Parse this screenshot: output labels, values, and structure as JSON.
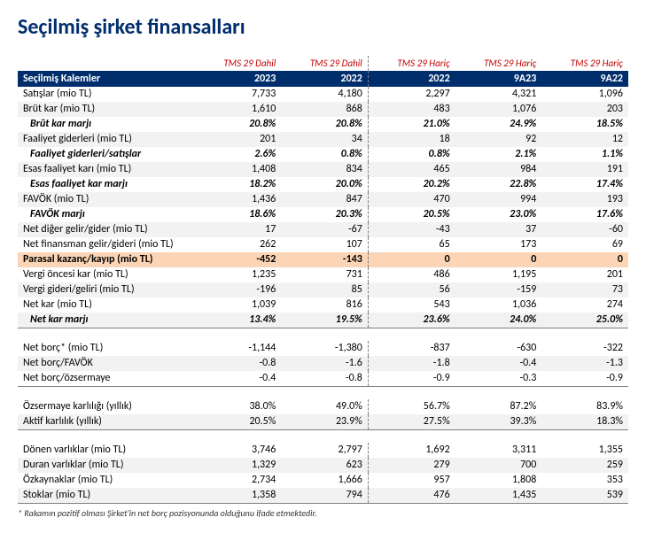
{
  "colors": {
    "title": "#002e6d",
    "super_header_text": "#c00000",
    "header_bg": "#002e6d",
    "header_text": "#ffffff",
    "highlight_bg": "#fbd5b5",
    "alt_row_bg": "#f2f2f2",
    "sep": "#7f7f7f"
  },
  "title": "Seçilmiş şirket finansalları",
  "footnote": "* Rakamın pozitif olması Şirket'in net borç pozisyonunda olduğunu ifade etmektedir.",
  "super_headers": [
    "TMS 29 Dahil",
    "TMS 29 Dahil",
    "TMS 29 Hariç",
    "TMS 29 Hariç",
    "TMS 29 Hariç"
  ],
  "headers": [
    "Seçilmiş Kalemler",
    "2023",
    "2022",
    "2022",
    "9A23",
    "9A22"
  ],
  "rows": [
    {
      "cells": [
        "Satışlar (mio TL)",
        "7,733",
        "4,180",
        "2,297",
        "4,321",
        "1,096"
      ]
    },
    {
      "cells": [
        "Brüt kar (mio TL)",
        "1,610",
        "868",
        "483",
        "1,076",
        "203"
      ],
      "alt": true
    },
    {
      "cells": [
        "Brüt kar marjı",
        "20.8%",
        "20.8%",
        "21.0%",
        "24.9%",
        "18.5%"
      ],
      "italic": true,
      "indent": true
    },
    {
      "cells": [
        "Faaliyet giderleri (mio TL)",
        "201",
        "34",
        "18",
        "92",
        "12"
      ],
      "alt": true
    },
    {
      "cells": [
        "Faaliyet giderleri/satışlar",
        "2.6%",
        "0.8%",
        "0.8%",
        "2.1%",
        "1.1%"
      ],
      "italic": true,
      "indent": true
    },
    {
      "cells": [
        "Esas faaliyet karı (mio TL)",
        "1,408",
        "834",
        "465",
        "984",
        "191"
      ],
      "alt": true
    },
    {
      "cells": [
        "Esas faaliyet kar marjı",
        "18.2%",
        "20.0%",
        "20.2%",
        "22.8%",
        "17.4%"
      ],
      "italic": true,
      "indent": true
    },
    {
      "cells": [
        "FAVÖK (mio TL)",
        "1,436",
        "847",
        "470",
        "994",
        "193"
      ],
      "alt": true
    },
    {
      "cells": [
        "FAVÖK marjı",
        "18.6%",
        "20.3%",
        "20.5%",
        "23.0%",
        "17.6%"
      ],
      "italic": true,
      "indent": true
    },
    {
      "cells": [
        "Net diğer gelir/gider (mio TL)",
        "17",
        "-67",
        "-43",
        "37",
        "-60"
      ],
      "alt": true
    },
    {
      "cells": [
        "Net finansman gelir/gideri (mio TL)",
        "262",
        "107",
        "65",
        "173",
        "69"
      ]
    },
    {
      "cells": [
        "Parasal kazanç/kayıp (mio TL)",
        "-452",
        "-143",
        "0",
        "0",
        "0"
      ],
      "highlight": true
    },
    {
      "cells": [
        "Vergi öncesi kar (mio TL)",
        "1,235",
        "731",
        "486",
        "1,195",
        "201"
      ]
    },
    {
      "cells": [
        "Vergi gideri/geliri (mio TL)",
        "-196",
        "85",
        "56",
        "-159",
        "73"
      ],
      "alt": true
    },
    {
      "cells": [
        "Net kar (mio TL)",
        "1,039",
        "816",
        "543",
        "1,036",
        "274"
      ]
    },
    {
      "cells": [
        "Net kar marjı",
        "13.4%",
        "19.5%",
        "23.6%",
        "24.0%",
        "25.0%"
      ],
      "italic": true,
      "indent": true,
      "alt": true,
      "sep": true
    },
    {
      "blank": true
    },
    {
      "cells": [
        "Net borç* (mio TL)",
        "-1,144",
        "-1,380",
        "-837",
        "-630",
        "-322"
      ]
    },
    {
      "cells": [
        "Net borç/FAVÖK",
        "-0.8",
        "-1.6",
        "-1.8",
        "-0.4",
        "-1.3"
      ],
      "alt": true
    },
    {
      "cells": [
        "Net borç/özsermaye",
        "-0.4",
        "-0.8",
        "-0.9",
        "-0.3",
        "-0.9"
      ],
      "sep": true
    },
    {
      "blank": true
    },
    {
      "cells": [
        "Özsermaye karlılığı (yıllık)",
        "38.0%",
        "49.0%",
        "56.7%",
        "87.2%",
        "83.9%"
      ]
    },
    {
      "cells": [
        "Aktif karlılık (yıllık)",
        "20.5%",
        "23.9%",
        "27.5%",
        "39.3%",
        "18.3%"
      ],
      "alt": true,
      "sep": true
    },
    {
      "blank": true
    },
    {
      "cells": [
        "Dönen varlıklar (mio TL)",
        "3,746",
        "2,797",
        "1,692",
        "3,311",
        "1,355"
      ]
    },
    {
      "cells": [
        "Duran varlıklar (mio TL)",
        "1,329",
        "623",
        "279",
        "700",
        "259"
      ],
      "alt": true
    },
    {
      "cells": [
        "Özkaynaklar (mio TL)",
        "2,734",
        "1,666",
        "957",
        "1,808",
        "353"
      ]
    },
    {
      "cells": [
        "Stoklar (mio TL)",
        "1,358",
        "794",
        "476",
        "1,435",
        "539"
      ],
      "alt": true,
      "sep": true
    }
  ]
}
